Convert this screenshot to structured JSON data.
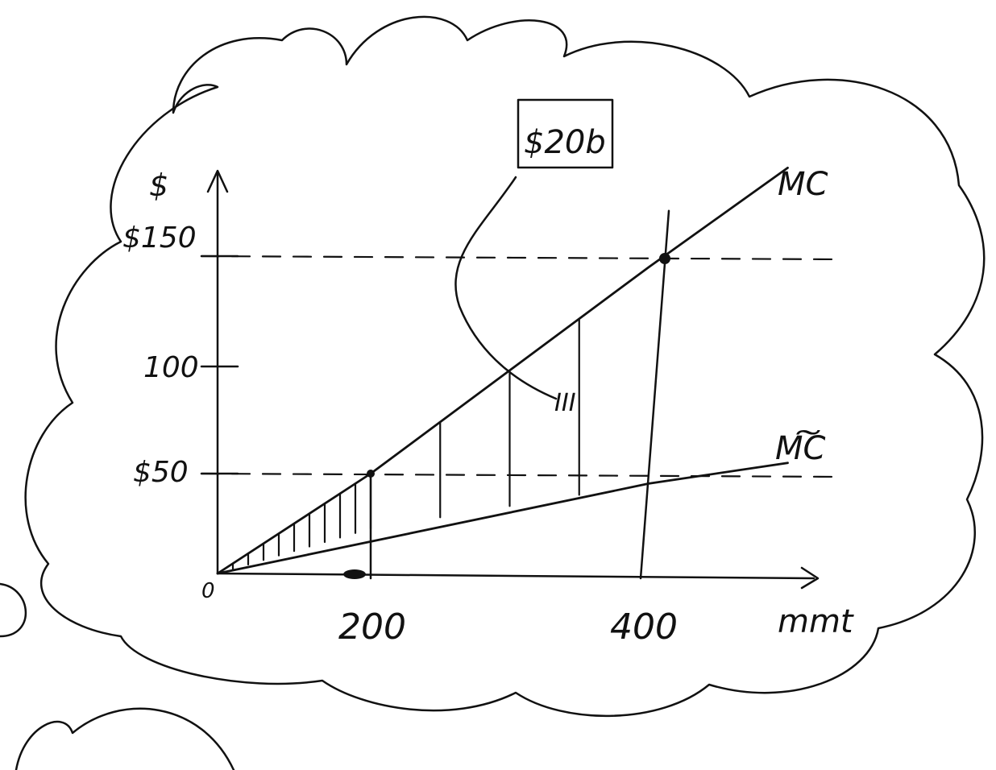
{
  "chart_data": {
    "type": "line",
    "title": "",
    "xlabel": "mmt",
    "ylabel": "$",
    "x_ticks": [
      {
        "value": 0,
        "label": "0"
      },
      {
        "value": 200,
        "label": "200"
      },
      {
        "value": 400,
        "label": "400"
      }
    ],
    "y_ticks": [
      {
        "value": 50,
        "label": "$50"
      },
      {
        "value": 100,
        "label": "100"
      },
      {
        "value": 150,
        "label": "$150"
      }
    ],
    "xlim": [
      0,
      540
    ],
    "ylim": [
      0,
      180
    ],
    "series": [
      {
        "name": "MC",
        "x": [
          0,
          200,
          400,
          500
        ],
        "y": [
          0,
          50,
          145,
          190
        ]
      },
      {
        "name": "M͠C",
        "x": [
          0,
          400,
          500
        ],
        "y": [
          0,
          45,
          55
        ]
      }
    ],
    "reference_lines": [
      {
        "type": "horizontal",
        "y": 150,
        "x_end": 500,
        "style": "dashed"
      },
      {
        "type": "horizontal",
        "y": 50,
        "x_end": 500,
        "style": "dashed"
      },
      {
        "type": "vertical",
        "x": 200,
        "y_end": 50
      },
      {
        "type": "vertical",
        "x": 400,
        "y_end": 145
      }
    ],
    "shaded_region": {
      "between": [
        "MC",
        "M͠C"
      ],
      "x_range": [
        0,
        400
      ],
      "pattern": "vertical-hatch"
    },
    "annotations": [
      {
        "text": "$20b",
        "boxed": true
      },
      {
        "text": "III"
      }
    ],
    "grid": false,
    "legend": "none"
  }
}
